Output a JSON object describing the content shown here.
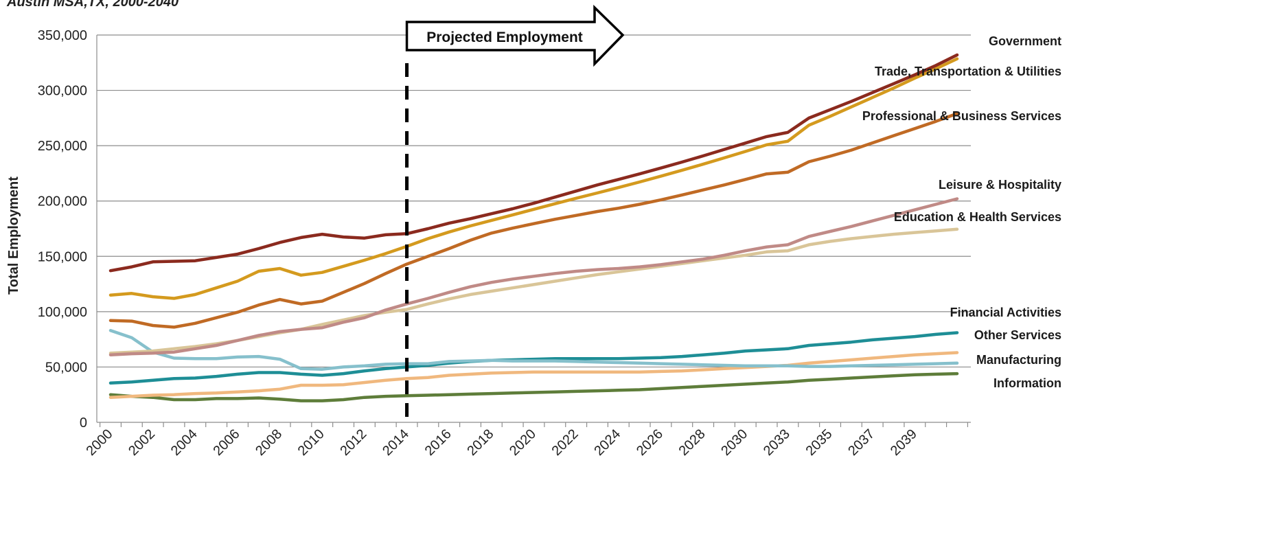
{
  "subtitle": "Austin MSA,TX, 2000-2040",
  "chart_data": {
    "type": "line",
    "title": "",
    "subtitle": "Austin MSA,TX, 2000-2040",
    "xlabel": "",
    "ylabel": "Total Employment",
    "ylim": [
      0,
      350000
    ],
    "yticks": [
      "0",
      "50,000",
      "100,000",
      "150,000",
      "200,000",
      "250,000",
      "300,000",
      "350,000"
    ],
    "x": [
      2000,
      2001,
      2002,
      2003,
      2004,
      2005,
      2006,
      2007,
      2008,
      2009,
      2010,
      2011,
      2012,
      2013,
      2014,
      2015,
      2016,
      2017,
      2018,
      2019,
      2020,
      2021,
      2022,
      2023,
      2024,
      2025,
      2026,
      2027,
      2028,
      2029,
      2030,
      2031,
      2032,
      2033,
      2034,
      2035,
      2036,
      2037,
      2038,
      2039,
      2040
    ],
    "xtick_labels": [
      "2000",
      "2002",
      "2004",
      "2006",
      "2008",
      "2010",
      "2012",
      "2014",
      "2016",
      "2018",
      "2020",
      "2022",
      "2024",
      "2026",
      "2028",
      "2030",
      "2033",
      "2035",
      "2037",
      "2039"
    ],
    "grid": true,
    "legend": "labels at right end of lines",
    "annotation": {
      "arrow_label": "Projected Employment",
      "divider_year": 2014
    },
    "series": [
      {
        "name": "Government",
        "color": "#8B2A1E",
        "values": [
          137000,
          140500,
          145000,
          145500,
          146000,
          149000,
          152000,
          157000,
          162500,
          167000,
          170000,
          167500,
          166500,
          169500,
          170500,
          175000,
          180000,
          184000,
          188500,
          193000,
          198000,
          203500,
          209000,
          214500,
          219500,
          224500,
          229800,
          235200,
          240800,
          246600,
          252400,
          258200,
          262000,
          275000,
          282500,
          290000,
          298000,
          306000,
          314000,
          322500,
          332000
        ]
      },
      {
        "name": "Trade, Transportation & Utilities",
        "color": "#D49A1E",
        "values": [
          115000,
          116500,
          113500,
          112000,
          115500,
          121500,
          127500,
          136500,
          139000,
          133000,
          135500,
          141000,
          146500,
          152500,
          159000,
          166000,
          172000,
          177500,
          182500,
          187500,
          192500,
          197500,
          202500,
          207300,
          212200,
          217200,
          222400,
          227800,
          233300,
          239000,
          244800,
          250800,
          254000,
          268500,
          276500,
          285000,
          293500,
          302000,
          311000,
          319500,
          328500
        ]
      },
      {
        "name": "Professional & Business Services",
        "color": "#C06A24",
        "values": [
          92000,
          91500,
          87500,
          86000,
          89500,
          94500,
          99500,
          106000,
          111000,
          107000,
          109500,
          117500,
          125500,
          134500,
          143000,
          150000,
          157000,
          164500,
          171000,
          175500,
          179500,
          183500,
          187000,
          190500,
          193500,
          197000,
          201000,
          205500,
          210000,
          214500,
          219500,
          224500,
          226000,
          235500,
          240500,
          246000,
          252500,
          259000,
          265500,
          272000,
          279000
        ]
      },
      {
        "name": "Leisure & Hospitality",
        "color": "#C08A86",
        "values": [
          61000,
          62000,
          62500,
          63500,
          66500,
          69500,
          74000,
          78500,
          82000,
          84000,
          85500,
          90500,
          94500,
          101500,
          107000,
          112000,
          117500,
          122500,
          126500,
          129500,
          132000,
          134500,
          136500,
          138000,
          139000,
          140500,
          142500,
          145000,
          147500,
          151000,
          155000,
          158500,
          160500,
          168000,
          172500,
          177000,
          182000,
          187000,
          192000,
          197000,
          202000
        ]
      },
      {
        "name": "Education & Health Services",
        "color": "#D9C598",
        "values": [
          62500,
          63500,
          64500,
          66500,
          68500,
          71000,
          74000,
          77500,
          81000,
          84000,
          88500,
          92500,
          96500,
          99500,
          102000,
          107000,
          111500,
          115500,
          118500,
          121500,
          124500,
          127500,
          130500,
          133500,
          136000,
          138500,
          141000,
          143500,
          146000,
          148500,
          151000,
          154000,
          155000,
          160500,
          163500,
          166000,
          168000,
          170000,
          171500,
          173000,
          174500
        ]
      },
      {
        "name": "Financial Activities",
        "color": "#86C0CC",
        "values": [
          83000,
          76500,
          63500,
          58000,
          57500,
          57500,
          59000,
          59500,
          57000,
          48500,
          48000,
          50000,
          51000,
          52500,
          53000,
          53000,
          55000,
          55500,
          56000,
          55500,
          55500,
          55500,
          55000,
          54500,
          54000,
          53500,
          53000,
          52500,
          52000,
          51500,
          51000,
          51000,
          51000,
          50500,
          50500,
          51000,
          51500,
          52000,
          52500,
          53000,
          53500
        ]
      },
      {
        "name": "Other Services",
        "color": "#1E8E96",
        "values": [
          35500,
          36500,
          38000,
          39500,
          40000,
          41500,
          43500,
          45000,
          45000,
          43500,
          42500,
          44000,
          46500,
          48500,
          50000,
          51500,
          53500,
          55000,
          56000,
          56500,
          57000,
          57500,
          57500,
          57500,
          57500,
          58000,
          58500,
          59500,
          61000,
          62500,
          64500,
          65500,
          66500,
          69500,
          71000,
          72500,
          74500,
          76000,
          77500,
          79500,
          81000
        ]
      },
      {
        "name": "Manufacturing",
        "color": "#F0B87E",
        "values": [
          22500,
          23500,
          24500,
          25000,
          26000,
          26500,
          27500,
          28500,
          30000,
          33500,
          33500,
          34000,
          36000,
          38000,
          39500,
          40500,
          42500,
          43500,
          44500,
          45000,
          45500,
          45500,
          45500,
          45500,
          45500,
          45500,
          46000,
          46500,
          47500,
          48500,
          49500,
          50500,
          51500,
          53500,
          55000,
          56500,
          58000,
          59500,
          61000,
          62000,
          63000
        ]
      },
      {
        "name": "Information",
        "color": "#5E7D3A",
        "values": [
          25000,
          23500,
          22500,
          20500,
          20500,
          21500,
          21500,
          22000,
          21000,
          19500,
          19500,
          20500,
          22500,
          23500,
          24000,
          24500,
          25000,
          25500,
          26000,
          26500,
          27000,
          27500,
          28000,
          28500,
          29000,
          29500,
          30500,
          31500,
          32500,
          33500,
          34500,
          35500,
          36500,
          38000,
          39000,
          40000,
          41000,
          42000,
          43000,
          43500,
          44000
        ]
      }
    ]
  }
}
